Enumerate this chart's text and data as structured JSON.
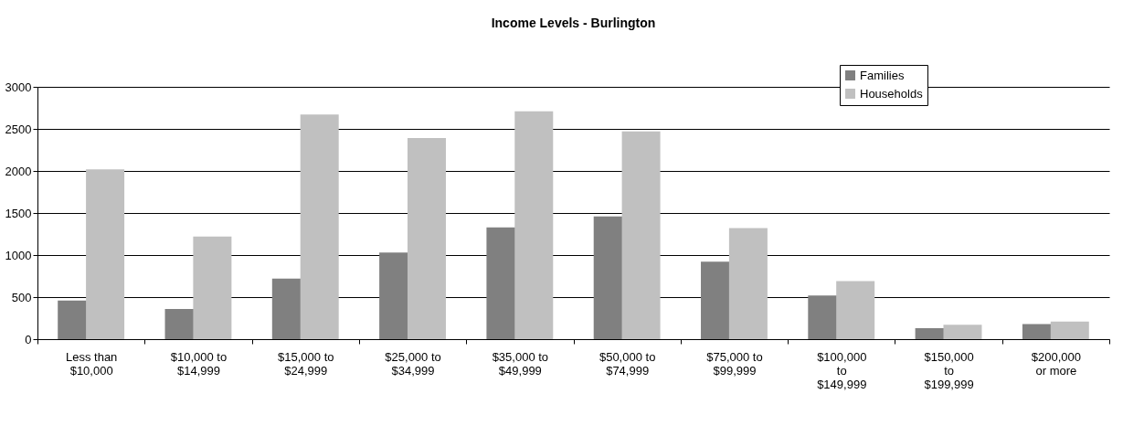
{
  "chart_data": {
    "type": "bar",
    "title": "Income Levels - Burlington",
    "categories": [
      "Less than $10,000",
      "$10,000 to $14,999",
      "$15,000 to $24,999",
      "$25,000 to $34,999",
      "$35,000 to $49,999",
      "$50,000 to $74,999",
      "$75,000 to $99,999",
      "$100,000 to $149,999",
      "$150,000 to $199,999",
      "$200,000 or more"
    ],
    "series": [
      {
        "name": "Families",
        "color": "#808080",
        "values": [
          460,
          360,
          720,
          1030,
          1330,
          1460,
          920,
          520,
          130,
          180
        ]
      },
      {
        "name": "Households",
        "color": "#c0c0c0",
        "values": [
          2020,
          1220,
          2670,
          2390,
          2710,
          2470,
          1320,
          690,
          170,
          210
        ]
      }
    ],
    "ylim": [
      0,
      3000
    ],
    "yticks": [
      0,
      500,
      1000,
      1500,
      2000,
      2500,
      3000
    ],
    "grid": "y",
    "legend": "top right"
  }
}
